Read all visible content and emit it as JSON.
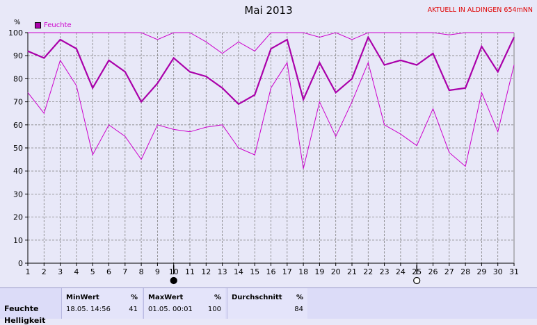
{
  "title": "Mai 2013",
  "status": "AKTUELL IN ALDINGEN 654mNN",
  "y_unit": "%",
  "legend": "Feuchte",
  "colors": {
    "series": "#cc00cc",
    "mean": "#aa00aa",
    "grid": "#808080",
    "status": "#e00000"
  },
  "moon_phases": [
    {
      "day": 10,
      "type": "new-moon"
    },
    {
      "day": 25,
      "type": "full-moon"
    }
  ],
  "chart_data": {
    "type": "line",
    "title": "Mai 2013",
    "ylabel": "%",
    "xlabel": "",
    "x": [
      1,
      2,
      3,
      4,
      5,
      6,
      7,
      8,
      9,
      10,
      11,
      12,
      13,
      14,
      15,
      16,
      17,
      18,
      19,
      20,
      21,
      22,
      23,
      24,
      25,
      26,
      27,
      28,
      29,
      30,
      31
    ],
    "ylim": [
      0,
      100
    ],
    "yticks": [
      0,
      10,
      20,
      30,
      40,
      50,
      60,
      70,
      80,
      90,
      100
    ],
    "grid": true,
    "legend_position": "top-left",
    "series": [
      {
        "name": "Feuchte",
        "role": "max",
        "values": [
          100,
          100,
          100,
          100,
          100,
          100,
          100,
          100,
          97,
          100,
          100,
          96,
          91,
          96,
          92,
          100,
          100,
          100,
          98,
          100,
          97,
          100,
          100,
          100,
          100,
          100,
          99,
          100,
          100,
          100,
          100
        ]
      },
      {
        "name": "Feuchte",
        "role": "mean",
        "values": [
          92,
          89,
          97,
          93,
          76,
          88,
          83,
          70,
          78,
          89,
          83,
          81,
          76,
          69,
          73,
          93,
          97,
          71,
          87,
          74,
          80,
          98,
          86,
          88,
          86,
          91,
          75,
          76,
          94,
          83,
          98
        ]
      },
      {
        "name": "Feuchte",
        "role": "min",
        "values": [
          74,
          65,
          88,
          77,
          47,
          60,
          55,
          45,
          60,
          58,
          57,
          59,
          60,
          50,
          47,
          76,
          87,
          41,
          70,
          55,
          70,
          87,
          60,
          56,
          51,
          67,
          48,
          42,
          74,
          57,
          86
        ]
      }
    ]
  },
  "stats": {
    "row_label": "Feuchte",
    "row_label_2": "Helligkeit",
    "min_header": "MinWert",
    "min_unit": "%",
    "min_time": "18.05.  14:56",
    "min_value": "41",
    "max_header": "MaxWert",
    "max_unit": "%",
    "max_time": "01.05.  00:01",
    "max_value": "100",
    "avg_header": "Durchschnitt",
    "avg_unit": "%",
    "avg_value": "84"
  }
}
